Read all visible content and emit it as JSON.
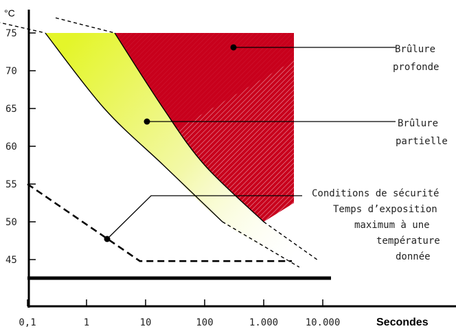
{
  "chart_data": {
    "type": "area",
    "y_unit": "°C",
    "xlabel": "Secondes",
    "x_scale": "log",
    "x_ticks": [
      "0,1",
      "1",
      "10",
      "100",
      "1.000",
      "10.000"
    ],
    "x_tick_values": [
      0.1,
      1,
      10,
      100,
      1000,
      10000
    ],
    "y_ticks": [
      "45",
      "50",
      "55",
      "60",
      "65",
      "70",
      "75"
    ],
    "y_tick_values": [
      45,
      50,
      55,
      60,
      65,
      70,
      75
    ],
    "ylim": [
      40,
      77
    ],
    "grid": false,
    "series": [
      {
        "name": "Brûlure profonde",
        "points": [
          [
            0.3,
            77
          ],
          [
            3,
            75
          ],
          [
            20,
            65
          ],
          [
            100,
            57.5
          ],
          [
            1000,
            50
          ],
          [
            8000,
            45
          ]
        ]
      },
      {
        "name": "Brûlure partielle",
        "points": [
          [
            0.015,
            77
          ],
          [
            0.2,
            75
          ],
          [
            2,
            65
          ],
          [
            20,
            57.5
          ],
          [
            200,
            50
          ],
          [
            4000,
            44
          ]
        ]
      },
      {
        "name": "Conditions de sécurité",
        "points": [
          [
            0.1,
            55
          ],
          [
            8,
            44.8
          ],
          [
            3000,
            44.8
          ]
        ]
      }
    ],
    "annotations": [
      {
        "id": "profonde",
        "lines": [
          "Brûlure",
          "profonde"
        ]
      },
      {
        "id": "partielle",
        "lines": [
          "Brûlure",
          "partielle"
        ]
      },
      {
        "id": "securite",
        "lines": [
          "Conditions de sécurité",
          "Temps d’exposition",
          "maximum à une",
          "température",
          "donnée"
        ]
      }
    ]
  }
}
